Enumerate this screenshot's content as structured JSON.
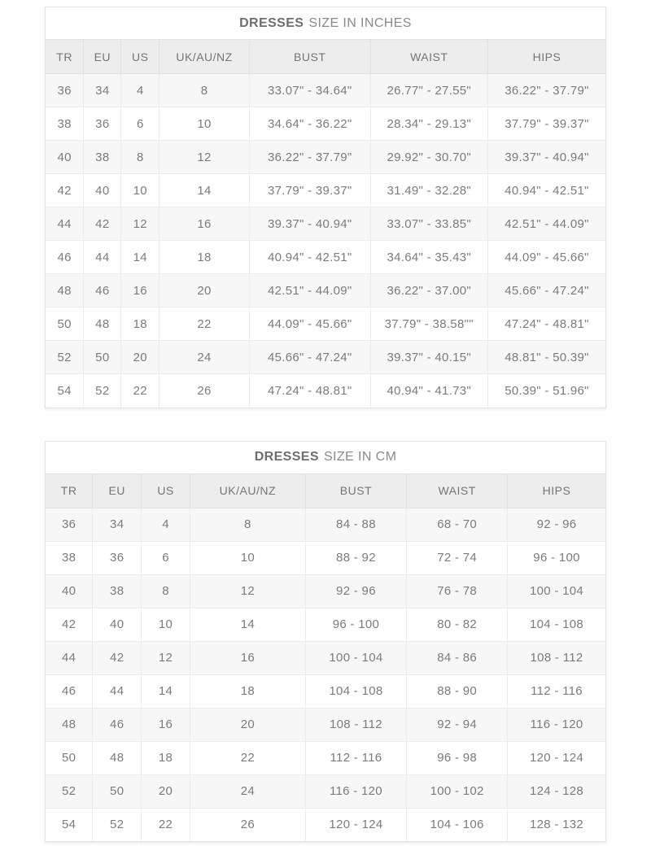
{
  "colors": {
    "page_background": "#ffffff",
    "header_row_background": "#ededed",
    "stripe_row_background": "#f7f7f7",
    "border": "#e3e3e3",
    "text": "#7b7b7b",
    "title_bold_text": "#6e6e6e"
  },
  "chart_data": [
    {
      "type": "table",
      "title": "DRESSES SIZE IN INCHES",
      "title_product": "DRESSES",
      "title_unit": "SIZE IN INCHES",
      "columns": [
        "TR",
        "EU",
        "US",
        "UK/AU/NZ",
        "BUST",
        "WAIST",
        "HIPS"
      ],
      "rows": [
        [
          "36",
          "34",
          "4",
          "8",
          "33.07\" - 34.64\"",
          "26.77\" - 27.55\"",
          "36.22\" - 37.79\""
        ],
        [
          "38",
          "36",
          "6",
          "10",
          "34.64\" - 36.22\"",
          "28.34\" - 29.13\"",
          "37.79\" - 39.37\""
        ],
        [
          "40",
          "38",
          "8",
          "12",
          "36.22\" - 37.79\"",
          "29.92\" - 30.70\"",
          "39.37\" - 40.94\""
        ],
        [
          "42",
          "40",
          "10",
          "14",
          "37.79\" - 39.37\"",
          "31.49\" - 32.28\"",
          "40.94\" - 42.51\""
        ],
        [
          "44",
          "42",
          "12",
          "16",
          "39.37\" - 40.94\"",
          "33.07\" - 33.85\"",
          "42.51\" - 44.09\""
        ],
        [
          "46",
          "44",
          "14",
          "18",
          "40.94\" - 42.51\"",
          "34.64\" - 35.43\"",
          "44.09\" - 45.66\""
        ],
        [
          "48",
          "46",
          "16",
          "20",
          "42.51\" - 44.09\"",
          "36.22\" - 37.00\"",
          "45.66\" - 47.24\""
        ],
        [
          "50",
          "48",
          "18",
          "22",
          "44.09\" - 45.66\"",
          "37.79\" - 38.58\"\"",
          "47.24\" - 48.81\""
        ],
        [
          "52",
          "50",
          "20",
          "24",
          "45.66\" - 47.24\"",
          "39.37\" - 40.15\"",
          "48.81\" - 50.39\""
        ],
        [
          "54",
          "52",
          "22",
          "26",
          "47.24\" - 48.81\"",
          "40.94\" - 41.73\"",
          "50.39\" - 51.96\""
        ]
      ]
    },
    {
      "type": "table",
      "title": "DRESSES SIZE IN CM",
      "title_product": "DRESSES",
      "title_unit": "SIZE IN CM",
      "columns": [
        "TR",
        "EU",
        "US",
        "UK/AU/NZ",
        "BUST",
        "WAIST",
        "HIPS"
      ],
      "rows": [
        [
          "36",
          "34",
          "4",
          "8",
          "84 - 88",
          "68 - 70",
          "92 - 96"
        ],
        [
          "38",
          "36",
          "6",
          "10",
          "88 - 92",
          "72 - 74",
          "96 - 100"
        ],
        [
          "40",
          "38",
          "8",
          "12",
          "92 - 96",
          "76 - 78",
          "100 - 104"
        ],
        [
          "42",
          "40",
          "10",
          "14",
          "96 - 100",
          "80 - 82",
          "104 - 108"
        ],
        [
          "44",
          "42",
          "12",
          "16",
          "100 - 104",
          "84 - 86",
          "108 - 112"
        ],
        [
          "46",
          "44",
          "14",
          "18",
          "104 - 108",
          "88 - 90",
          "112 - 116"
        ],
        [
          "48",
          "46",
          "16",
          "20",
          "108 - 112",
          "92 - 94",
          "116 - 120"
        ],
        [
          "50",
          "48",
          "18",
          "22",
          "112 - 116",
          "96 - 98",
          "120 - 124"
        ],
        [
          "52",
          "50",
          "20",
          "24",
          "116 - 120",
          "100 - 102",
          "124 - 128"
        ],
        [
          "54",
          "52",
          "22",
          "26",
          "120 - 124",
          "104 - 106",
          "128 - 132"
        ]
      ]
    }
  ]
}
